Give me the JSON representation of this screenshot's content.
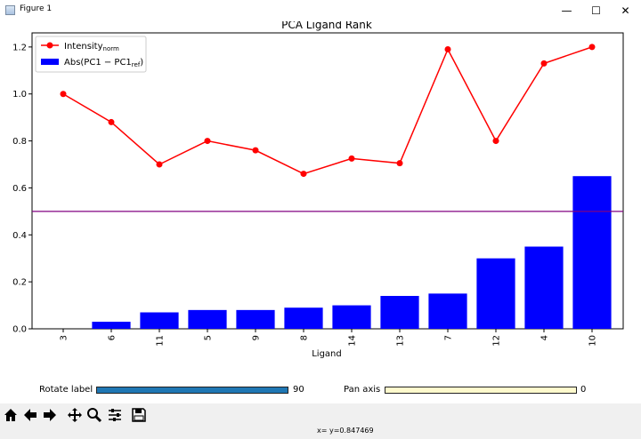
{
  "window": {
    "title": "Figure 1",
    "minimize": "—",
    "maximize": "☐",
    "close": "✕"
  },
  "chart_data": {
    "type": "bar",
    "title": "PCA Ligand Rank",
    "xlabel": "Ligand",
    "ylabel": "",
    "ylim": [
      0,
      1.26
    ],
    "yticks": [
      "0.0",
      "0.2",
      "0.4",
      "0.6",
      "0.8",
      "1.0",
      "1.2"
    ],
    "categories": [
      "3",
      "6",
      "11",
      "5",
      "9",
      "8",
      "14",
      "13",
      "7",
      "12",
      "4",
      "10"
    ],
    "series": [
      {
        "name": "Abs(PC1 − PC1ref)",
        "kind": "bar",
        "color": "#0000ff",
        "values": [
          0.0,
          0.03,
          0.07,
          0.08,
          0.08,
          0.09,
          0.1,
          0.14,
          0.15,
          0.3,
          0.35,
          0.65
        ]
      },
      {
        "name": "Intensitynorm",
        "kind": "line",
        "color": "#ff0000",
        "values": [
          1.0,
          0.88,
          0.7,
          0.8,
          0.76,
          0.66,
          0.725,
          0.705,
          1.19,
          0.8,
          1.13,
          1.2
        ]
      }
    ],
    "hline": {
      "y": 0.5,
      "color": "#800080"
    },
    "legend": {
      "position": "top-left",
      "line_label": "Intensity",
      "line_sub": "norm",
      "bar_label": "Abs(PC1 − PC1",
      "bar_sub": "ref",
      "bar_tail": ")"
    },
    "xtick_rotation": 90
  },
  "sliders": {
    "rotate": {
      "label": "Rotate label",
      "value": "90",
      "fraction": 1.0,
      "color": "#1f77b4"
    },
    "pan": {
      "label": "Pan axis",
      "value": "0",
      "fraction": 0.0,
      "color": "#fffacd"
    }
  },
  "toolbar": {
    "icons": [
      "home-icon",
      "back-icon",
      "forward-icon",
      "pan-icon",
      "zoom-icon",
      "configure-icon",
      "save-icon"
    ]
  },
  "status": {
    "text": "x= y=0.847469"
  }
}
